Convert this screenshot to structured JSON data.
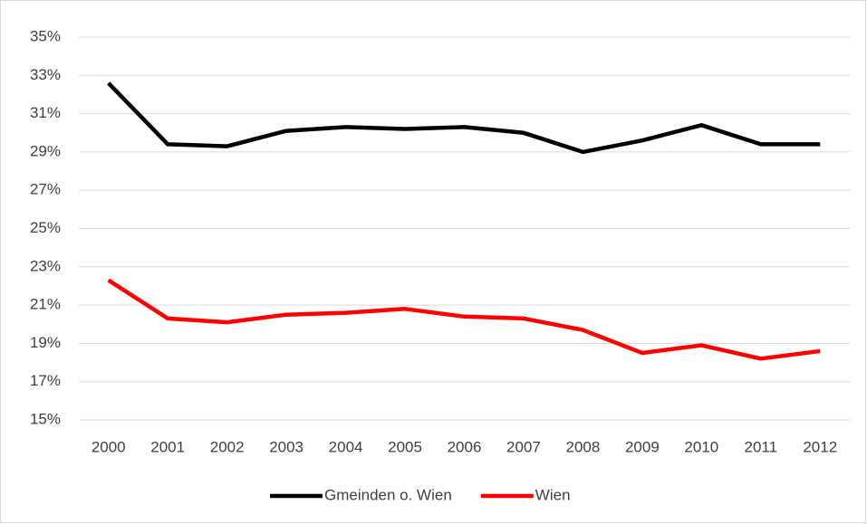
{
  "chart_data": {
    "type": "line",
    "categories": [
      "2000",
      "2001",
      "2002",
      "2003",
      "2004",
      "2005",
      "2006",
      "2007",
      "2008",
      "2009",
      "2010",
      "2011",
      "2012"
    ],
    "series": [
      {
        "name": "Gmeinden o. Wien",
        "color": "#000000",
        "values": [
          32.6,
          29.4,
          29.3,
          30.1,
          30.3,
          30.2,
          30.3,
          30.0,
          29.0,
          29.6,
          30.4,
          29.4,
          29.4
        ]
      },
      {
        "name": "Wien",
        "color": "#ff0000",
        "values": [
          22.3,
          20.3,
          20.1,
          20.5,
          20.6,
          20.8,
          20.4,
          20.3,
          19.7,
          18.5,
          18.9,
          18.2,
          18.6
        ]
      }
    ],
    "ylim": [
      15,
      35
    ],
    "yticks": [
      {
        "value": 15,
        "label": "15%"
      },
      {
        "value": 17,
        "label": "17%"
      },
      {
        "value": 19,
        "label": "19%"
      },
      {
        "value": 21,
        "label": "21%"
      },
      {
        "value": 23,
        "label": "23%"
      },
      {
        "value": 25,
        "label": "25%"
      },
      {
        "value": 27,
        "label": "27%"
      },
      {
        "value": 29,
        "label": "29%"
      },
      {
        "value": 31,
        "label": "31%"
      },
      {
        "value": 33,
        "label": "33%"
      },
      {
        "value": 35,
        "label": "35%"
      }
    ],
    "grid": true,
    "legend": "bottom"
  }
}
